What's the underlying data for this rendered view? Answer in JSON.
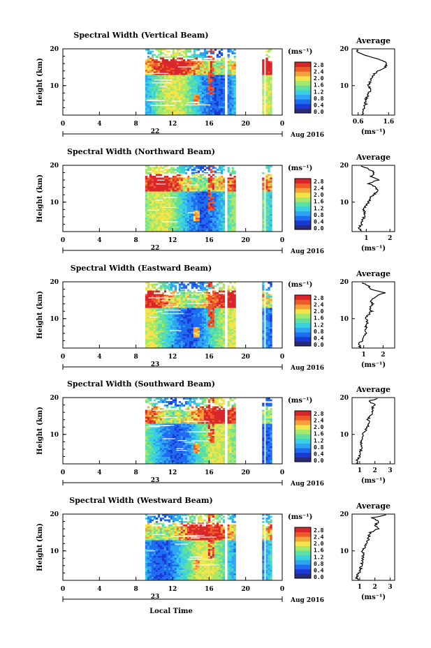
{
  "colorbar": {
    "unit_label": "(ms⁻¹)",
    "ticks": [
      "2.8",
      "2.4",
      "2.0",
      "1.6",
      "1.2",
      "0.8",
      "0.4",
      "0.0"
    ],
    "colors": [
      "#2a2a7a",
      "#1a3ad6",
      "#1f6cf2",
      "#2fa4f2",
      "#39d0e0",
      "#5fe0a0",
      "#a6e86a",
      "#f2e44a",
      "#f6a23a",
      "#ee5a2a",
      "#d8262a"
    ]
  },
  "xaxis": {
    "ticks": [
      "0",
      "4",
      "8",
      "12",
      "16",
      "20",
      "0"
    ],
    "range": [
      0,
      24
    ],
    "date_label": "Aug 2016",
    "xlabel": "Local Time"
  },
  "yaxis": {
    "ylabel": "Height (km)",
    "ticks": [
      "10",
      "20"
    ],
    "range": [
      2,
      20
    ]
  },
  "avg_title": "Average",
  "avg_ylabel_unit": "(ms⁻¹)",
  "chart_data": [
    {
      "type": "heatmap",
      "title": "Spectral Width (Vertical Beam)",
      "day_label": "22",
      "data_gaps_hours": [
        [
          0,
          9.0
        ],
        [
          17.5,
          18.0
        ],
        [
          18.8,
          21.0
        ],
        [
          22.0,
          22.2
        ],
        [
          22.8,
          23.4
        ],
        [
          24.0,
          24.0
        ]
      ],
      "data_segments_hours": [
        [
          9.0,
          17.5
        ],
        [
          18.0,
          18.8
        ],
        [
          21.8,
          22.0
        ],
        [
          22.2,
          22.8
        ]
      ],
      "avg_profile": {
        "type": "line",
        "title": "Average",
        "xticks": [
          "0.6",
          "1.6"
        ],
        "xlim": [
          0.4,
          1.8
        ],
        "height_km": [
          2,
          3,
          4,
          5,
          6,
          7,
          8,
          9,
          10,
          11,
          12,
          13,
          14,
          15,
          16,
          17,
          18,
          19,
          20
        ],
        "width": [
          0.75,
          0.72,
          0.8,
          0.85,
          0.82,
          0.9,
          0.95,
          1.0,
          0.92,
          0.98,
          1.05,
          1.1,
          1.25,
          1.5,
          1.55,
          1.35,
          0.9,
          0.6,
          0.55
        ]
      }
    },
    {
      "type": "heatmap",
      "title": "Spectral Width (Northward Beam)",
      "day_label": "22",
      "data_segments_hours": [
        [
          9.0,
          17.5
        ],
        [
          18.0,
          18.8
        ],
        [
          21.8,
          22.0
        ],
        [
          22.2,
          22.8
        ]
      ],
      "avg_profile": {
        "type": "line",
        "title": "Average",
        "xticks": [
          "1",
          "2"
        ],
        "xlim": [
          0.4,
          2.2
        ],
        "height_km": [
          2,
          3,
          4,
          5,
          6,
          7,
          8,
          9,
          10,
          11,
          12,
          13,
          14,
          15,
          16,
          17,
          18,
          19,
          20
        ],
        "width": [
          0.75,
          0.7,
          0.8,
          0.85,
          0.9,
          0.95,
          0.9,
          1.0,
          1.1,
          1.15,
          1.3,
          1.5,
          1.4,
          1.1,
          1.5,
          1.2,
          1.35,
          1.1,
          0.7
        ]
      }
    },
    {
      "type": "heatmap",
      "title": "Spectral Width (Eastward Beam)",
      "day_label": "23",
      "data_segments_hours": [
        [
          9.0,
          17.5
        ],
        [
          18.0,
          18.8
        ],
        [
          21.8,
          22.0
        ],
        [
          22.2,
          22.8
        ]
      ],
      "avg_profile": {
        "type": "line",
        "title": "Average",
        "xticks": [
          "1",
          "2"
        ],
        "xlim": [
          0.4,
          2.6
        ],
        "height_km": [
          2,
          3,
          4,
          5,
          6,
          7,
          8,
          9,
          10,
          11,
          12,
          13,
          14,
          15,
          16,
          17,
          18,
          19,
          20
        ],
        "width": [
          0.8,
          0.75,
          0.9,
          1.0,
          1.1,
          1.05,
          1.15,
          1.2,
          1.1,
          1.25,
          1.4,
          1.3,
          1.5,
          1.35,
          1.6,
          2.1,
          1.4,
          1.2,
          0.8
        ]
      }
    },
    {
      "type": "heatmap",
      "title": "Spectral Width (Southward Beam)",
      "day_label": "23",
      "data_segments_hours": [
        [
          9.0,
          17.5
        ],
        [
          18.0,
          18.8
        ],
        [
          21.8,
          22.0
        ],
        [
          22.2,
          22.8
        ]
      ],
      "avg_profile": {
        "type": "line",
        "title": "Average",
        "xticks": [
          "1",
          "2",
          "3"
        ],
        "xlim": [
          0.5,
          3.3
        ],
        "height_km": [
          2,
          3,
          4,
          5,
          6,
          7,
          8,
          9,
          10,
          11,
          12,
          13,
          14,
          15,
          16,
          17,
          18,
          19,
          20
        ],
        "width": [
          0.9,
          0.85,
          1.0,
          1.05,
          1.1,
          1.15,
          1.1,
          1.2,
          1.25,
          1.35,
          1.5,
          1.6,
          1.55,
          1.7,
          1.9,
          1.8,
          2.0,
          1.6,
          2.3
        ]
      }
    },
    {
      "type": "heatmap",
      "title": "Spectral Width (Westward Beam)",
      "day_label": "23",
      "data_segments_hours": [
        [
          9.0,
          17.5
        ],
        [
          18.0,
          18.8
        ],
        [
          21.8,
          22.0
        ],
        [
          22.2,
          22.8
        ]
      ],
      "avg_profile": {
        "type": "line",
        "title": "Average",
        "xticks": [
          "1",
          "2",
          "3"
        ],
        "xlim": [
          0.5,
          3.3
        ],
        "height_km": [
          2,
          3,
          4,
          5,
          6,
          7,
          8,
          9,
          10,
          11,
          12,
          13,
          14,
          15,
          16,
          17,
          18,
          19,
          20
        ],
        "width": [
          0.85,
          0.8,
          0.95,
          1.05,
          1.1,
          1.15,
          1.2,
          1.25,
          1.2,
          1.35,
          1.4,
          1.55,
          1.6,
          1.7,
          2.2,
          2.0,
          2.3,
          1.8,
          3.0
        ]
      }
    }
  ]
}
